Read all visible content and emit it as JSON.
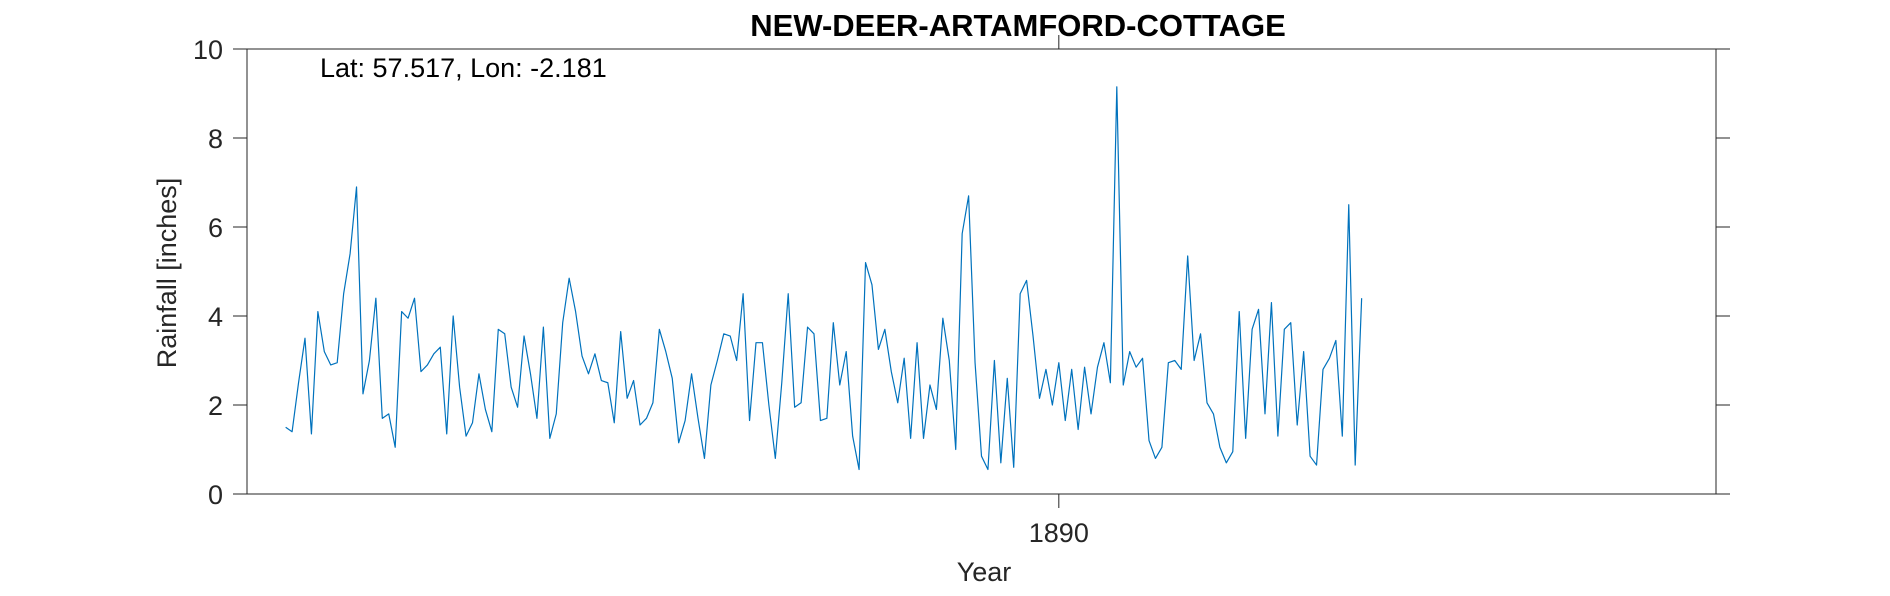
{
  "chart_data": {
    "type": "line",
    "title": "NEW-DEER-ARTAMFORD-COTTAGE",
    "xlabel": "Year",
    "ylabel": "Rainfall [inches]",
    "annotation": "Lat: 57.517, Lon: -2.181",
    "xlim": [
      1879.5,
      1898.5
    ],
    "ylim": [
      0,
      10
    ],
    "x_ticks": [
      1890
    ],
    "x_tick_labels": [
      "1890"
    ],
    "y_ticks": [
      0,
      2,
      4,
      6,
      8,
      10
    ],
    "y_tick_labels": [
      "0",
      "2",
      "4",
      "6",
      "8",
      "10"
    ],
    "grid": false,
    "line_color": "#0072BD",
    "series": [
      {
        "x_start": "1880-01",
        "x_step": "1 month",
        "values": [
          1.5,
          1.4,
          2.5,
          3.5,
          1.35,
          4.1,
          3.2,
          2.9,
          2.95,
          4.5,
          5.4,
          6.9,
          2.25,
          3.0,
          4.4,
          1.7,
          1.8,
          1.05,
          4.1,
          3.95,
          4.4,
          2.75,
          2.9,
          3.15,
          3.3,
          1.35,
          4.0,
          2.4,
          1.3,
          1.6,
          2.7,
          1.9,
          1.4,
          3.7,
          3.6,
          2.4,
          1.95,
          3.55,
          2.7,
          1.7,
          3.75,
          1.25,
          1.8,
          3.85,
          4.85,
          4.1,
          3.1,
          2.7,
          3.15,
          2.55,
          2.5,
          1.6,
          3.65,
          2.15,
          2.55,
          1.55,
          1.7,
          2.05,
          3.7,
          3.2,
          2.6,
          1.15,
          1.65,
          2.7,
          1.7,
          0.8,
          2.45,
          3.0,
          3.6,
          3.55,
          3.0,
          4.5,
          1.65,
          3.4,
          3.4,
          2.0,
          0.8,
          2.5,
          4.5,
          1.95,
          2.05,
          3.75,
          3.6,
          1.65,
          1.7,
          3.85,
          2.45,
          3.2,
          1.3,
          0.55,
          5.2,
          4.7,
          3.25,
          3.7,
          2.75,
          2.05,
          3.05,
          1.25,
          3.4,
          1.25,
          2.45,
          1.9,
          3.95,
          3.0,
          1.0,
          5.85,
          6.7,
          2.95,
          0.85,
          0.55,
          3.0,
          0.7,
          2.6,
          0.6,
          4.5,
          4.8,
          3.55,
          2.15,
          2.8,
          2.0,
          2.95,
          1.65,
          2.8,
          1.45,
          2.85,
          1.8,
          2.85,
          3.4,
          2.5,
          9.15,
          2.45,
          3.2,
          2.85,
          3.05,
          1.2,
          0.8,
          1.05,
          2.95,
          3.0,
          2.8,
          5.35,
          3.0,
          3.6,
          2.05,
          1.8,
          1.05,
          0.7,
          0.95,
          4.1,
          1.25,
          3.7,
          4.15,
          1.8,
          4.3,
          1.3,
          3.7,
          3.85,
          1.55,
          3.2,
          0.85,
          0.65,
          2.8,
          3.05,
          3.45,
          1.3,
          6.5,
          0.65,
          4.4
        ]
      }
    ]
  }
}
